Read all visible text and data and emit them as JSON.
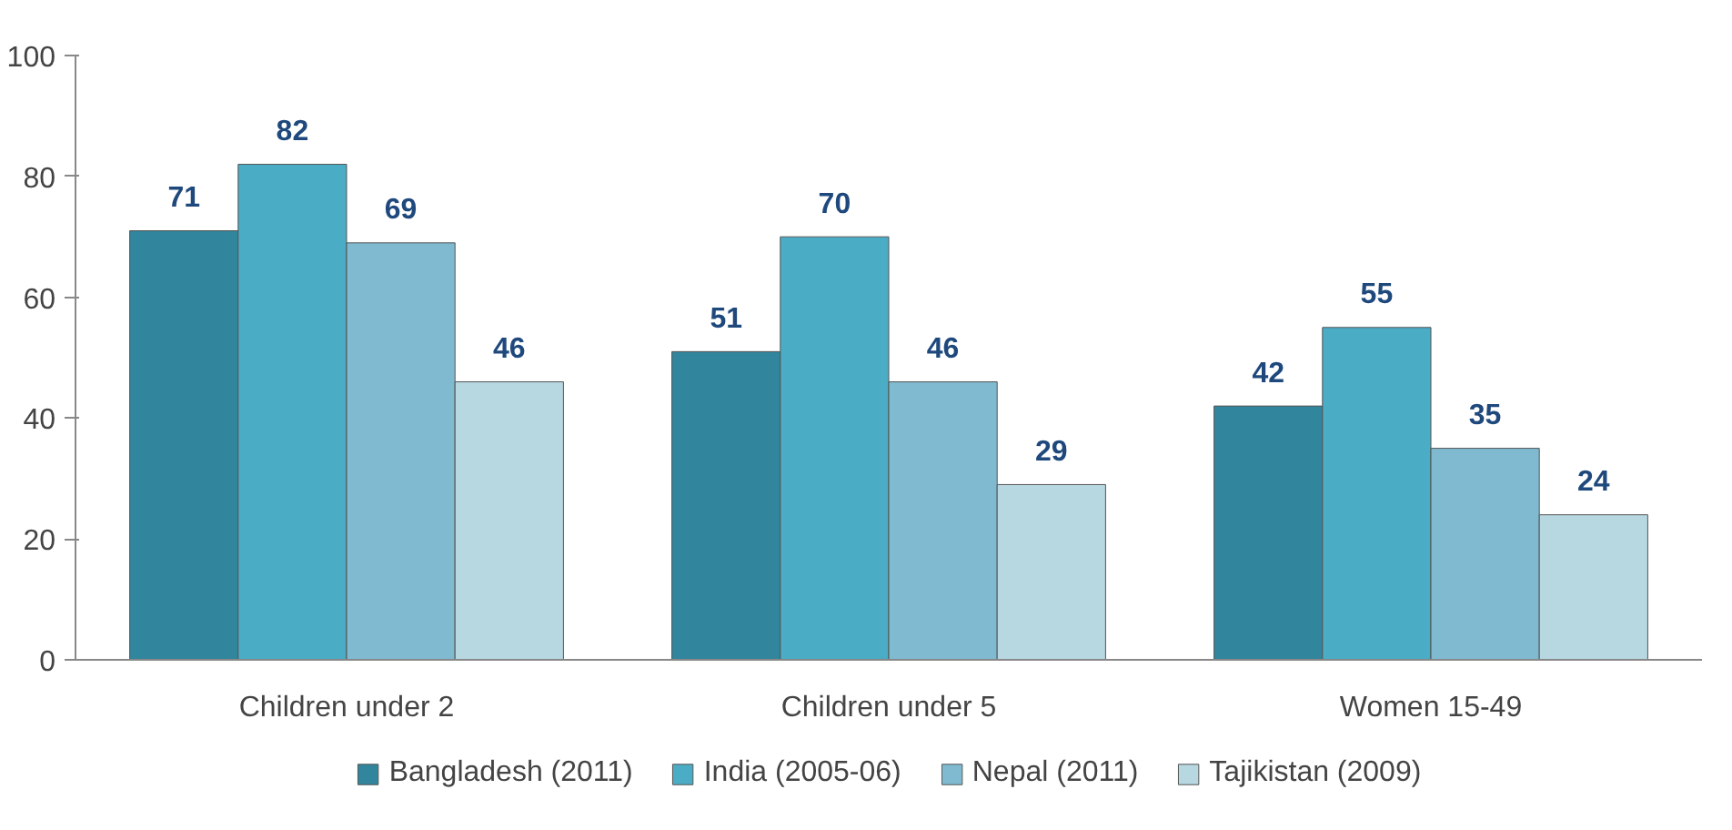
{
  "chart_data": {
    "type": "bar",
    "categories": [
      "Children under 2",
      "Children under 5",
      "Women 15-49"
    ],
    "series": [
      {
        "name": "Bangladesh (2011)",
        "color": "#31859c",
        "values": [
          71,
          51,
          42
        ]
      },
      {
        "name": "India (2005-06)",
        "color": "#4bacc6",
        "values": [
          82,
          70,
          55
        ]
      },
      {
        "name": "Nepal (2011)",
        "color": "#7fbad1",
        "values": [
          69,
          46,
          35
        ]
      },
      {
        "name": "Tajikistan (2009)",
        "color": "#b7d7e1",
        "values": [
          46,
          29,
          24
        ]
      }
    ],
    "ylim": [
      0,
      100
    ],
    "yticks": [
      0,
      20,
      40,
      60,
      80,
      100
    ],
    "grid": false,
    "legend": "bottom",
    "data_labels": true
  }
}
